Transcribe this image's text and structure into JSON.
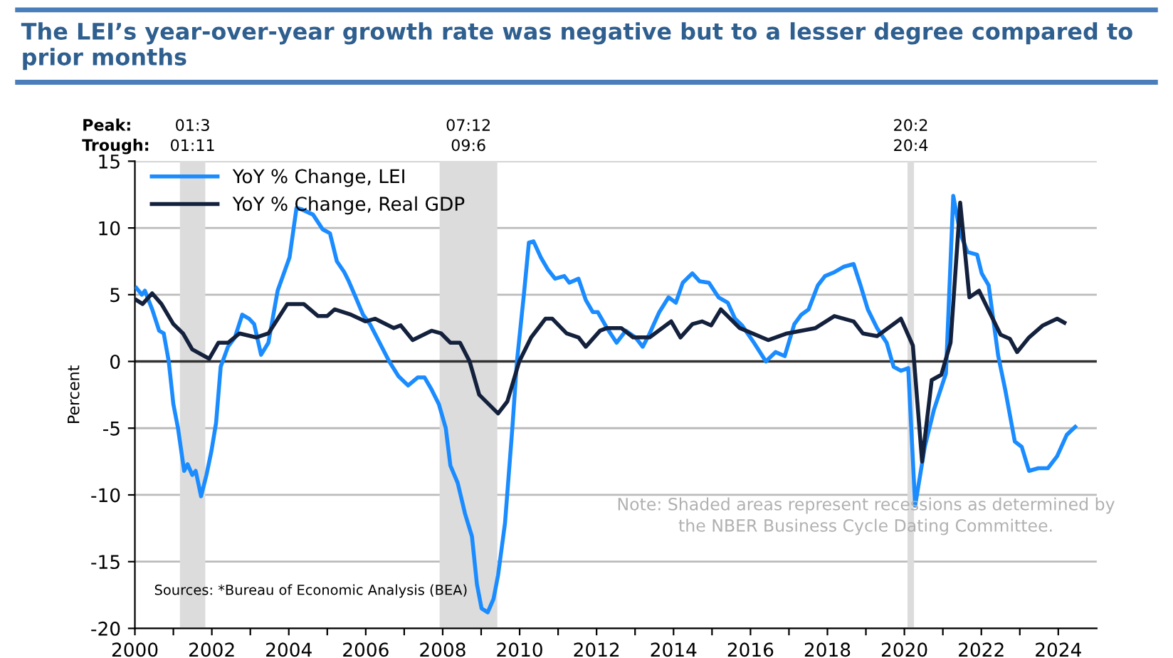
{
  "chart_data": {
    "type": "line",
    "title": "The LEI’s year-over-year growth rate was negative but to a lesser degree compared to prior months",
    "ylabel": "Percent",
    "xlim": [
      2000,
      2025
    ],
    "ylim": [
      -20,
      15
    ],
    "xticks": [
      2000,
      {
        "value": 2001,
        "label": null
      },
      2002,
      {
        "value": 2003,
        "label": null
      },
      2004,
      {
        "value": 2005,
        "label": null
      },
      2006,
      {
        "value": 2007,
        "label": null
      },
      2008,
      {
        "value": 2009,
        "label": null
      },
      2010,
      {
        "value": 2011,
        "label": null
      },
      2012,
      {
        "value": 2013,
        "label": null
      },
      2014,
      {
        "value": 2015,
        "label": null
      },
      2016,
      {
        "value": 2017,
        "label": null
      },
      2018,
      {
        "value": 2019,
        "label": null
      },
      2020,
      {
        "value": 2021,
        "label": null
      },
      2022,
      {
        "value": 2023,
        "label": null
      },
      2024
    ],
    "yticks": [
      -20,
      -15,
      -10,
      -5,
      0,
      5,
      10,
      15
    ],
    "grid": "y",
    "legend": "top left",
    "series": [
      {
        "name": "YoY % Change, LEI",
        "color": "#1a8cff",
        "x": [
          2000.04,
          2000.18,
          2000.26,
          2000.45,
          2000.63,
          2000.75,
          2000.88,
          2001.0,
          2001.12,
          2001.28,
          2001.37,
          2001.49,
          2001.58,
          2001.72,
          2001.86,
          2001.99,
          2002.11,
          2002.23,
          2002.42,
          2002.6,
          2002.79,
          2002.97,
          2003.1,
          2003.28,
          2003.47,
          2003.71,
          2004.02,
          2004.2,
          2004.33,
          2004.63,
          2004.88,
          2005.07,
          2005.25,
          2005.44,
          2005.56,
          2005.74,
          2005.93,
          2006.11,
          2006.36,
          2006.61,
          2006.85,
          2007.1,
          2007.35,
          2007.53,
          2007.71,
          2007.9,
          2008.08,
          2008.2,
          2008.39,
          2008.58,
          2008.76,
          2008.89,
          2009.01,
          2009.17,
          2009.32,
          2009.44,
          2009.62,
          2009.81,
          2009.93,
          2010.11,
          2010.24,
          2010.36,
          2010.55,
          2010.73,
          2010.92,
          2011.16,
          2011.29,
          2011.53,
          2011.72,
          2011.9,
          2012.03,
          2012.27,
          2012.52,
          2012.76,
          2013.01,
          2013.2,
          2013.38,
          2013.63,
          2013.87,
          2014.06,
          2014.24,
          2014.49,
          2014.68,
          2014.92,
          2015.17,
          2015.41,
          2015.6,
          2015.78,
          2016.09,
          2016.4,
          2016.65,
          2016.89,
          2017.14,
          2017.32,
          2017.51,
          2017.75,
          2017.94,
          2018.19,
          2018.43,
          2018.68,
          2018.86,
          2019.05,
          2019.29,
          2019.54,
          2019.72,
          2019.91,
          2020.1,
          2020.28,
          2020.53,
          2020.77,
          2021.08,
          2021.27,
          2021.45,
          2021.64,
          2021.89,
          2022.01,
          2022.19,
          2022.44,
          2022.62,
          2022.87,
          2023.05,
          2023.24,
          2023.48,
          2023.73,
          2023.97,
          2024.22,
          2024.44
        ],
        "values": [
          5.5,
          5.0,
          5.3,
          3.9,
          2.3,
          2.1,
          0.0,
          -3.2,
          -5.0,
          -8.2,
          -7.7,
          -8.5,
          -8.2,
          -10.1,
          -8.5,
          -6.7,
          -4.6,
          -0.4,
          1.1,
          1.8,
          3.5,
          3.2,
          2.8,
          0.5,
          1.4,
          5.3,
          7.8,
          11.5,
          11.4,
          11.0,
          9.9,
          9.6,
          7.5,
          6.7,
          6.0,
          4.8,
          3.5,
          2.8,
          1.4,
          0.0,
          -1.1,
          -1.8,
          -1.2,
          -1.2,
          -2.1,
          -3.2,
          -5.0,
          -7.8,
          -9.1,
          -11.4,
          -13.1,
          -16.7,
          -18.5,
          -18.8,
          -17.8,
          -16.0,
          -12.1,
          -5.0,
          0.0,
          5.0,
          8.9,
          9.0,
          7.8,
          6.9,
          6.2,
          6.4,
          5.9,
          6.2,
          4.6,
          3.7,
          3.7,
          2.5,
          1.4,
          2.3,
          1.8,
          1.1,
          2.1,
          3.7,
          4.8,
          4.4,
          5.9,
          6.6,
          6.0,
          5.9,
          4.8,
          4.4,
          3.2,
          2.7,
          1.4,
          0.0,
          0.7,
          0.4,
          2.8,
          3.5,
          3.9,
          5.7,
          6.4,
          6.7,
          7.1,
          7.3,
          5.7,
          3.9,
          2.5,
          1.4,
          -0.4,
          -0.7,
          -0.5,
          -10.8,
          -6.4,
          -3.6,
          -0.9,
          12.4,
          9.6,
          8.2,
          8.0,
          6.6,
          5.7,
          0.4,
          -2.1,
          -6.0,
          -6.4,
          -8.2,
          -8.0,
          -8.0,
          -7.1,
          -5.5,
          -4.9
        ]
      },
      {
        "name": "YoY % Change, Real GDP",
        "color": "#14213d",
        "x": [
          2000.04,
          2000.2,
          2000.45,
          2000.69,
          2001.0,
          2001.25,
          2001.49,
          2001.93,
          2002.17,
          2002.42,
          2002.72,
          2003.15,
          2003.47,
          2003.96,
          2004.39,
          2004.76,
          2005.0,
          2005.19,
          2005.62,
          2005.99,
          2006.24,
          2006.73,
          2006.91,
          2007.22,
          2007.71,
          2007.96,
          2008.2,
          2008.45,
          2008.7,
          2008.95,
          2009.44,
          2009.68,
          2009.99,
          2010.3,
          2010.67,
          2010.85,
          2011.22,
          2011.53,
          2011.72,
          2012.09,
          2012.27,
          2012.64,
          2012.95,
          2013.38,
          2013.94,
          2014.18,
          2014.49,
          2014.74,
          2014.98,
          2015.23,
          2015.72,
          2016.46,
          2016.95,
          2017.69,
          2018.18,
          2018.68,
          2018.92,
          2019.29,
          2019.91,
          2020.22,
          2020.46,
          2020.71,
          2020.96,
          2021.2,
          2021.45,
          2021.69,
          2021.94,
          2022.5,
          2022.74,
          2022.93,
          2023.24,
          2023.6,
          2023.97,
          2024.16
        ],
        "values": [
          4.6,
          4.3,
          5.1,
          4.3,
          2.8,
          2.1,
          0.9,
          0.2,
          1.4,
          1.4,
          2.1,
          1.8,
          2.1,
          4.3,
          4.3,
          3.4,
          3.4,
          3.9,
          3.5,
          3.0,
          3.2,
          2.5,
          2.7,
          1.6,
          2.3,
          2.1,
          1.4,
          1.4,
          0.0,
          -2.5,
          -3.9,
          -3.0,
          0.0,
          1.8,
          3.2,
          3.2,
          2.1,
          1.8,
          1.1,
          2.3,
          2.5,
          2.5,
          1.8,
          1.8,
          3.0,
          1.8,
          2.8,
          3.0,
          2.7,
          3.9,
          2.5,
          1.6,
          2.1,
          2.5,
          3.4,
          3.0,
          2.1,
          1.9,
          3.2,
          1.2,
          -7.5,
          -1.4,
          -1.0,
          1.4,
          11.9,
          4.8,
          5.3,
          2.0,
          1.7,
          0.7,
          1.8,
          2.7,
          3.2,
          2.9
        ]
      }
    ],
    "bands": [
      {
        "axis": "x",
        "from": 2001.17,
        "to": 2001.83,
        "label": "01:3\n01:11",
        "color": "#dcdcdc"
      },
      {
        "axis": "x",
        "from": 2007.92,
        "to": 2009.42,
        "label": "07:12\n09:6",
        "color": "#dcdcdc"
      },
      {
        "axis": "x",
        "from": 2020.08,
        "to": 2020.25,
        "label": "20:2\n20:4",
        "color": "#dcdcdc"
      }
    ],
    "ref_lines": [
      {
        "axis": "y",
        "value": 0,
        "color": "#333333"
      }
    ],
    "annotations": [
      "Peak:\nTrough:",
      "Note: Shaded areas represent recessions as determined by\nthe NBER Business Cycle Dating Committee.",
      "Sources: *Bureau of Economic Analysis (BEA)"
    ]
  }
}
